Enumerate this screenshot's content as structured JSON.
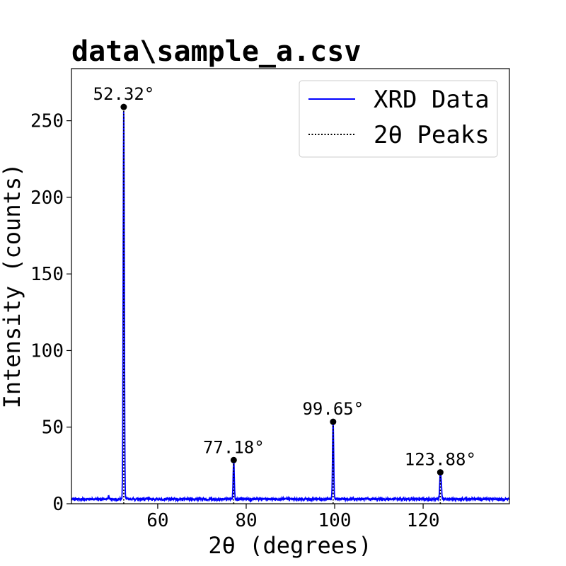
{
  "chart_data": {
    "type": "line",
    "title": "data\\sample_a.csv",
    "xlabel": "2θ (degrees)",
    "ylabel": "Intensity (counts)",
    "xlim": [
      40.5,
      139.5
    ],
    "ylim": [
      0,
      284
    ],
    "xticks": [
      60,
      80,
      100,
      120
    ],
    "yticks": [
      0,
      50,
      100,
      150,
      200,
      250
    ],
    "grid": false,
    "legend_position": "top-right",
    "legend": [
      {
        "label": "XRD Data",
        "style": "solid",
        "color": "#0000ff"
      },
      {
        "label": "2θ Peaks",
        "style": "dotted",
        "color": "#000000"
      }
    ],
    "baseline": 3,
    "peaks": [
      {
        "x": 52.32,
        "y": 259,
        "label": "52.32°"
      },
      {
        "x": 77.18,
        "y": 28.5,
        "label": "77.18°"
      },
      {
        "x": 99.65,
        "y": 53.5,
        "label": "99.65°"
      },
      {
        "x": 123.88,
        "y": 20.5,
        "label": "123.88°"
      }
    ],
    "minor_features": [
      {
        "x": 48.9,
        "y": 5
      },
      {
        "x": 124.1,
        "y": 11
      }
    ],
    "series": [
      {
        "name": "XRD Data",
        "color": "#0000ff"
      }
    ]
  }
}
